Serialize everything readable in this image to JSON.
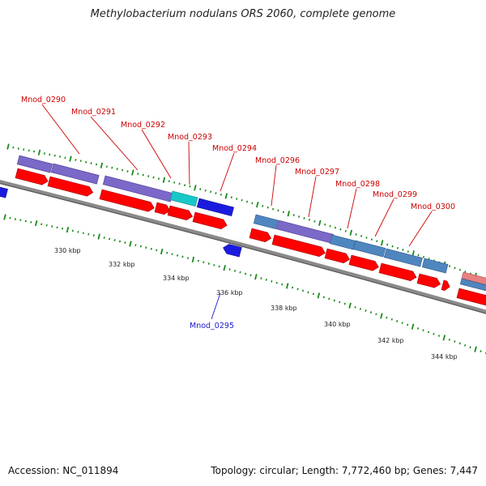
{
  "title": "Methylobacterium nodulans ORS 2060, complete genome",
  "accession": "Accession: NC_011894",
  "topology": "Topology: circular; Length: 7,772,460 bp; Genes: 7,447",
  "colors": {
    "backbone": "#8a8a8a",
    "cds_red": "#ff0000",
    "gene_purple": "#7b68c8",
    "gene_steel": "#4f86bf",
    "gene_cyan": "#18c8c8",
    "gene_blue": "#1b1be0",
    "gene_pink": "#e88080",
    "tick_green": "#1a8a1a",
    "label_red": "#cc0000",
    "label_blue": "#1a1acc"
  },
  "axis": {
    "ticks": [
      {
        "label": "330 kbp"
      },
      {
        "label": "332 kbp"
      },
      {
        "label": "334 kbp"
      },
      {
        "label": "336 kbp"
      },
      {
        "label": "338 kbp"
      },
      {
        "label": "340 kbp"
      },
      {
        "label": "342 kbp"
      },
      {
        "label": "344 kbp"
      }
    ]
  },
  "gene_labels": [
    {
      "name": "Mnod_0290",
      "strand": "forward"
    },
    {
      "name": "Mnod_0291",
      "strand": "forward"
    },
    {
      "name": "Mnod_0292",
      "strand": "forward"
    },
    {
      "name": "Mnod_0293",
      "strand": "forward"
    },
    {
      "name": "Mnod_0294",
      "strand": "forward"
    },
    {
      "name": "Mnod_0296",
      "strand": "forward"
    },
    {
      "name": "Mnod_0297",
      "strand": "forward"
    },
    {
      "name": "Mnod_0298",
      "strand": "forward"
    },
    {
      "name": "Mnod_0299",
      "strand": "forward"
    },
    {
      "name": "Mnod_0300",
      "strand": "forward"
    },
    {
      "name": "Mnod_0295",
      "strand": "reverse"
    }
  ]
}
